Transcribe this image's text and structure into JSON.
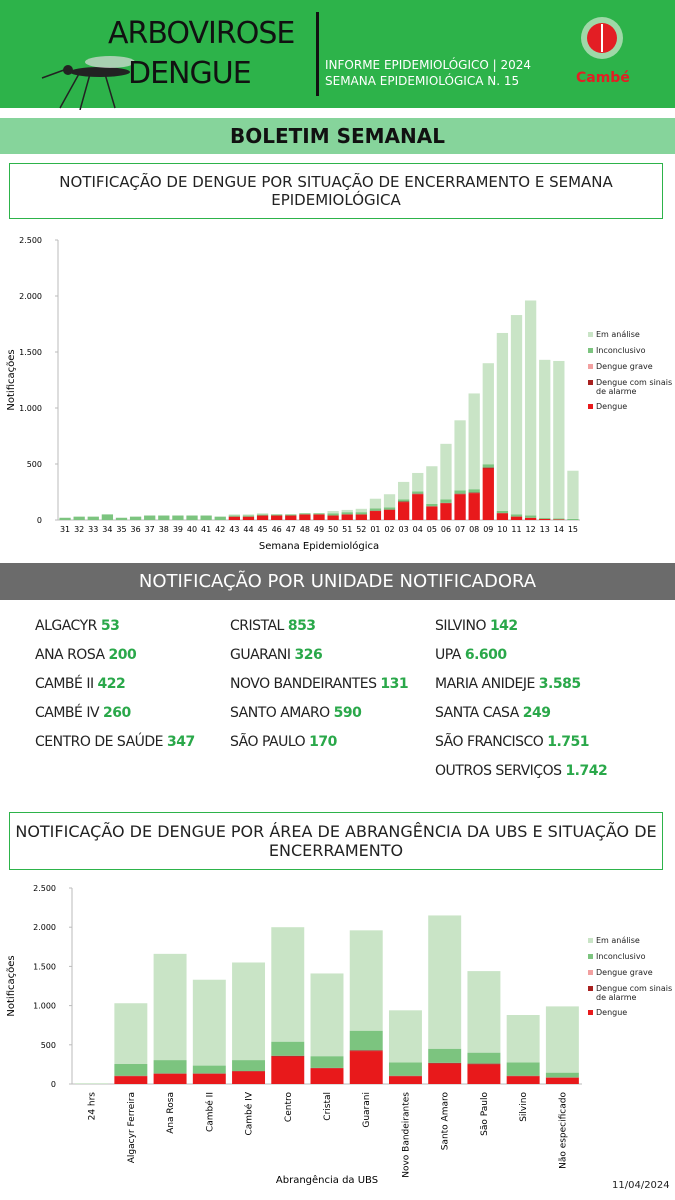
{
  "header": {
    "title1": "ARBOVIROSE",
    "title2": "DENGUE",
    "info1": "INFORME EPIDEMIOLÓGICO | 2024",
    "info2": "SEMANA EPIDEMIOLÓGICA  N. 15",
    "logo": "Cambé"
  },
  "banner": "BOLETIM SEMANAL",
  "chart_data": [
    {
      "type": "bar",
      "stacked": true,
      "title": "NOTIFICAÇÃO DE DENGUE POR SITUAÇÃO DE ENCERRAMENTO E SEMANA EPIDEMIOLÓGICA",
      "xlabel": "Semana Epidemiológica",
      "ylabel": "Notificações",
      "categories": [
        "31",
        "32",
        "33",
        "34",
        "35",
        "36",
        "37",
        "38",
        "39",
        "40",
        "41",
        "42",
        "43",
        "44",
        "45",
        "46",
        "47",
        "48",
        "49",
        "50",
        "51",
        "52",
        "01",
        "02",
        "03",
        "04",
        "05",
        "06",
        "07",
        "08",
        "09",
        "10",
        "11",
        "12",
        "13",
        "14",
        "15"
      ],
      "series": [
        {
          "name": "Dengue",
          "color": "#e8191b",
          "values": [
            0,
            0,
            0,
            0,
            0,
            0,
            0,
            0,
            0,
            0,
            0,
            0,
            30,
            30,
            40,
            40,
            40,
            50,
            50,
            40,
            50,
            50,
            80,
            90,
            160,
            230,
            120,
            150,
            230,
            240,
            460,
            60,
            30,
            20,
            10,
            5,
            0
          ]
        },
        {
          "name": "Dengue com sinais de alarme",
          "color": "#a8201f",
          "values": [
            0,
            0,
            0,
            0,
            0,
            0,
            0,
            0,
            0,
            0,
            0,
            0,
            0,
            0,
            0,
            0,
            0,
            0,
            0,
            0,
            0,
            0,
            3,
            3,
            5,
            5,
            3,
            3,
            5,
            5,
            8,
            2,
            1,
            0,
            0,
            0,
            0
          ]
        },
        {
          "name": "Dengue grave",
          "color": "#f2a0a0",
          "values": [
            0,
            0,
            0,
            0,
            0,
            0,
            0,
            0,
            0,
            0,
            0,
            0,
            0,
            0,
            0,
            0,
            0,
            0,
            0,
            0,
            0,
            0,
            0,
            0,
            0,
            0,
            0,
            0,
            0,
            0,
            0,
            0,
            0,
            0,
            0,
            0,
            0
          ]
        },
        {
          "name": "Inconclusivo",
          "color": "#7cc47f",
          "values": [
            20,
            30,
            30,
            50,
            20,
            30,
            40,
            40,
            40,
            40,
            40,
            30,
            10,
            10,
            10,
            10,
            10,
            10,
            10,
            20,
            20,
            20,
            20,
            20,
            20,
            20,
            20,
            30,
            30,
            30,
            30,
            20,
            20,
            20,
            10,
            10,
            10
          ]
        },
        {
          "name": "Em análise",
          "color": "#c9e4c6",
          "values": [
            0,
            0,
            0,
            0,
            0,
            0,
            0,
            0,
            0,
            0,
            0,
            0,
            10,
            10,
            10,
            0,
            0,
            0,
            0,
            20,
            20,
            30,
            87,
            117,
            155,
            165,
            337,
            497,
            625,
            855,
            902,
            1588,
            1779,
            1920,
            1410,
            1405,
            430
          ]
        }
      ],
      "ylim": [
        0,
        2500
      ],
      "yticks": [
        0,
        500,
        {
          "value": 1000,
          "label": "1.000"
        },
        {
          "value": 1500,
          "label": "1.500"
        },
        {
          "value": 2000,
          "label": "2.000"
        },
        {
          "value": 2500,
          "label": "2.500"
        }
      ],
      "grid": false,
      "legend": "right"
    },
    {
      "type": "bar",
      "stacked": true,
      "title": "NOTIFICAÇÃO DE DENGUE POR ÁREA DE ABRANGÊNCIA DA UBS E SITUAÇÃO DE ENCERRAMENTO",
      "xlabel": "Abrangência da UBS",
      "ylabel": "Notificações",
      "categories": [
        "24 hrs",
        "Algacyr Ferreira",
        "Ana Rosa",
        "Cambé II",
        "Cambé IV",
        "Centro",
        "Cristal",
        "Guarani",
        "Novo Bandeirantes",
        "Santo Amaro",
        "São Paulo",
        "Silvino",
        "Não especificado"
      ],
      "series": [
        {
          "name": "Dengue",
          "color": "#e8191b",
          "values": [
            0,
            100,
            130,
            130,
            160,
            350,
            200,
            420,
            100,
            260,
            250,
            100,
            80
          ]
        },
        {
          "name": "Dengue com sinais de alarme",
          "color": "#a8201f",
          "values": [
            0,
            5,
            5,
            5,
            5,
            10,
            5,
            10,
            5,
            10,
            10,
            5,
            5
          ]
        },
        {
          "name": "Dengue grave",
          "color": "#f2a0a0",
          "values": [
            0,
            0,
            0,
            0,
            0,
            0,
            0,
            0,
            0,
            0,
            0,
            0,
            0
          ]
        },
        {
          "name": "Inconclusivo",
          "color": "#7cc47f",
          "values": [
            0,
            150,
            170,
            100,
            140,
            180,
            150,
            250,
            170,
            180,
            140,
            170,
            60
          ]
        },
        {
          "name": "Em análise",
          "color": "#c9e4c6",
          "values": [
            10,
            775,
            1355,
            1095,
            1245,
            1460,
            1055,
            1280,
            665,
            1700,
            1040,
            605,
            845
          ]
        }
      ],
      "ylim": [
        0,
        2500
      ],
      "yticks": [
        0,
        500,
        {
          "value": 1000,
          "label": "1.000"
        },
        {
          "value": 1500,
          "label": "1.500"
        },
        {
          "value": 2000,
          "label": "2.000"
        },
        {
          "value": 2500,
          "label": "2.500"
        }
      ],
      "grid": false,
      "legend": "right"
    }
  ],
  "units": {
    "title": "NOTIFICAÇÃO POR UNIDADE NOTIFICADORA",
    "columns": [
      [
        {
          "name": "ALGACYR",
          "value": "53"
        },
        {
          "name": "ANA ROSA",
          "value": "200"
        },
        {
          "name": "CAMBÉ II",
          "value": "422"
        },
        {
          "name": "CAMBÉ IV",
          "value": "260"
        },
        {
          "name": "CENTRO DE SAÚDE",
          "value": "347"
        }
      ],
      [
        {
          "name": "CRISTAL",
          "value": "853"
        },
        {
          "name": "GUARANI",
          "value": "326"
        },
        {
          "name": "NOVO BANDEIRANTES",
          "value": "131"
        },
        {
          "name": "SANTO AMARO",
          "value": "590"
        },
        {
          "name": "SÃO PAULO",
          "value": "170"
        }
      ],
      [
        {
          "name": "SILVINO",
          "value": "142"
        },
        {
          "name": "UPA",
          "value": "6.600"
        },
        {
          "name": "MARIA ANIDEJE",
          "value": "3.585"
        },
        {
          "name": "SANTA CASA",
          "value": "249"
        },
        {
          "name": "SÃO FRANCISCO",
          "value": "1.751"
        },
        {
          "name": "OUTROS SERVIÇOS",
          "value": "1.742"
        }
      ]
    ]
  },
  "date": "11/04/2024"
}
